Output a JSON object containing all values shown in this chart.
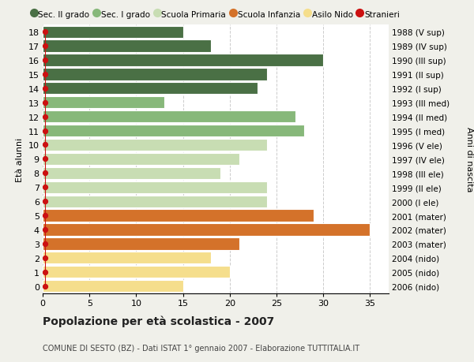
{
  "ages": [
    18,
    17,
    16,
    15,
    14,
    13,
    12,
    11,
    10,
    9,
    8,
    7,
    6,
    5,
    4,
    3,
    2,
    1,
    0
  ],
  "years": [
    "1988 (V sup)",
    "1989 (IV sup)",
    "1990 (III sup)",
    "1991 (II sup)",
    "1992 (I sup)",
    "1993 (III med)",
    "1994 (II med)",
    "1995 (I med)",
    "1996 (V ele)",
    "1997 (IV ele)",
    "1998 (III ele)",
    "1999 (II ele)",
    "2000 (I ele)",
    "2001 (mater)",
    "2002 (mater)",
    "2003 (mater)",
    "2004 (nido)",
    "2005 (nido)",
    "2006 (nido)"
  ],
  "values": [
    15,
    18,
    30,
    24,
    23,
    13,
    27,
    28,
    24,
    21,
    19,
    24,
    24,
    29,
    35,
    21,
    18,
    20,
    15
  ],
  "categories": {
    "sec2": [
      18,
      17,
      16,
      15,
      14
    ],
    "sec1": [
      13,
      12,
      11
    ],
    "primaria": [
      10,
      9,
      8,
      7,
      6
    ],
    "infanzia": [
      5,
      4,
      3
    ],
    "nido": [
      2,
      1,
      0
    ]
  },
  "colors": {
    "sec2": "#4a7045",
    "sec1": "#87b87a",
    "primaria": "#c8ddb3",
    "infanzia": "#d4722a",
    "nido": "#f5de8c"
  },
  "legend_labels": [
    "Sec. II grado",
    "Sec. I grado",
    "Scuola Primaria",
    "Scuola Infanzia",
    "Asilo Nido",
    "Stranieri"
  ],
  "legend_colors": [
    "#4a7045",
    "#87b87a",
    "#c8ddb3",
    "#d4722a",
    "#f5de8c",
    "#cc1111"
  ],
  "title": "Popolazione per età scolastica - 2007",
  "subtitle": "COMUNE DI SESTO (BZ) - Dati ISTAT 1° gennaio 2007 - Elaborazione TUTTITALIA.IT",
  "ylabel_left": "Età alunni",
  "ylabel_right": "Anni di nascita",
  "xlim": [
    0,
    37
  ],
  "bg_color": "#f0f0ea",
  "plot_bg": "#ffffff",
  "grid_color": "#cccccc"
}
